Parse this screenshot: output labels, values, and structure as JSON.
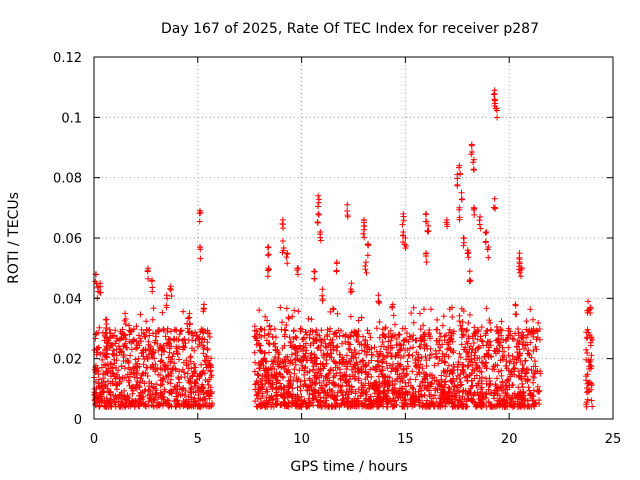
{
  "chart_data": {
    "type": "scatter",
    "title": "Day 167 of 2025, Rate Of TEC Index for receiver p287",
    "xlabel": "GPS time / hours",
    "ylabel": "ROTI / TECUs",
    "xlim": [
      0,
      25
    ],
    "ylim": [
      0,
      0.12
    ],
    "x_ticks": [
      0,
      5,
      10,
      15,
      20,
      25
    ],
    "y_ticks": [
      0,
      0.02,
      0.04,
      0.06,
      0.08,
      0.1,
      0.12
    ],
    "x_tick_labels": [
      "0",
      "5",
      "10",
      "15",
      "20",
      "25"
    ],
    "y_tick_labels": [
      "0",
      "0.02",
      "0.04",
      "0.06",
      "0.08",
      "0.1",
      "0.12"
    ],
    "grid": true,
    "legend": "none",
    "marker": "plus",
    "color": "#ff0000",
    "series": [
      {
        "segments": [
          [
            0,
            5.7
          ],
          [
            7.7,
            21.5
          ],
          [
            23.7,
            24.0
          ]
        ],
        "points": [
          [
            0.2,
            0.044
          ],
          [
            0.3,
            0.045
          ],
          [
            0.1,
            0.048
          ],
          [
            0.6,
            0.033
          ],
          [
            1.5,
            0.035
          ],
          [
            2.6,
            0.05
          ],
          [
            2.8,
            0.046
          ],
          [
            3.5,
            0.041
          ],
          [
            3.7,
            0.044
          ],
          [
            4.6,
            0.035
          ],
          [
            5.1,
            0.069
          ],
          [
            5.1,
            0.057
          ],
          [
            5.3,
            0.038
          ],
          [
            8.4,
            0.057
          ],
          [
            8.4,
            0.05
          ],
          [
            9.1,
            0.066
          ],
          [
            9.1,
            0.059
          ],
          [
            9.3,
            0.055
          ],
          [
            9.8,
            0.05
          ],
          [
            10.6,
            0.049
          ],
          [
            10.8,
            0.074
          ],
          [
            10.8,
            0.068
          ],
          [
            10.9,
            0.062
          ],
          [
            11.0,
            0.043
          ],
          [
            11.7,
            0.052
          ],
          [
            12.2,
            0.071
          ],
          [
            12.4,
            0.045
          ],
          [
            13.0,
            0.066
          ],
          [
            13.0,
            0.064
          ],
          [
            13.2,
            0.058
          ],
          [
            13.1,
            0.052
          ],
          [
            13.7,
            0.041
          ],
          [
            14.4,
            0.038
          ],
          [
            14.9,
            0.068
          ],
          [
            14.9,
            0.062
          ],
          [
            15.0,
            0.06
          ],
          [
            16.0,
            0.068
          ],
          [
            16.1,
            0.064
          ],
          [
            16.0,
            0.055
          ],
          [
            17.0,
            0.066
          ],
          [
            17.6,
            0.084
          ],
          [
            17.5,
            0.081
          ],
          [
            17.7,
            0.075
          ],
          [
            17.6,
            0.07
          ],
          [
            17.8,
            0.06
          ],
          [
            18.2,
            0.091
          ],
          [
            18.3,
            0.086
          ],
          [
            18.3,
            0.07
          ],
          [
            18.0,
            0.056
          ],
          [
            18.1,
            0.049
          ],
          [
            18.6,
            0.067
          ],
          [
            18.9,
            0.062
          ],
          [
            19.0,
            0.057
          ],
          [
            19.3,
            0.109
          ],
          [
            19.3,
            0.106
          ],
          [
            19.4,
            0.103
          ],
          [
            19.3,
            0.073
          ],
          [
            20.5,
            0.055
          ],
          [
            20.5,
            0.052
          ],
          [
            20.6,
            0.05
          ],
          [
            20.3,
            0.038
          ],
          [
            23.8,
            0.039
          ],
          [
            23.9,
            0.037
          ]
        ]
      }
    ]
  }
}
